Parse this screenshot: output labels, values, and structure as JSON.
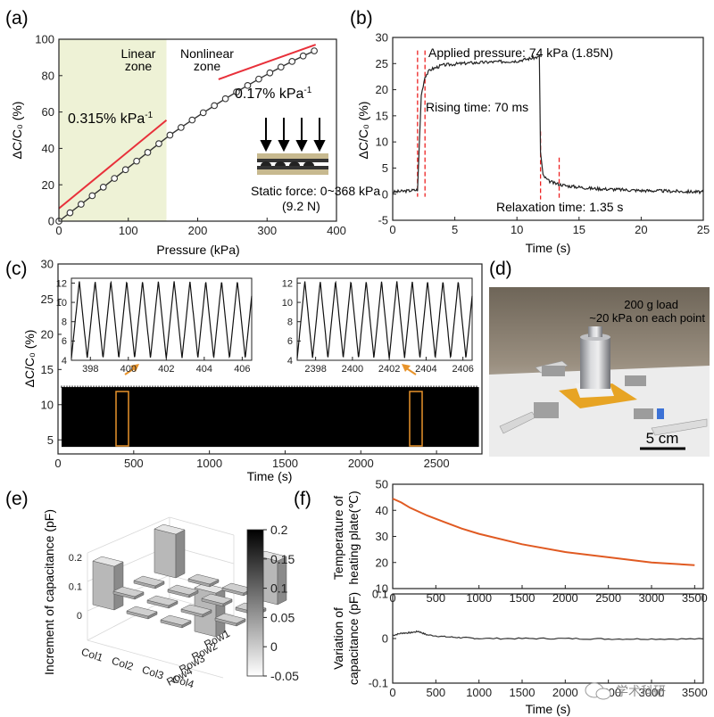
{
  "panel_labels": [
    "(a)",
    "(b)",
    "(c)",
    "(d)",
    "(e)",
    "(f)"
  ],
  "colors": {
    "fit_line": "#e8303a",
    "data_curve": "#333333",
    "linear_zone": "#eef2d6",
    "heating_curve": "#e05a22",
    "dashed": "#ee2222",
    "inset_box": "#e8932a"
  },
  "chart_data": [
    {
      "id": "a",
      "type": "line",
      "xlabel": "Pressure (kPa)",
      "ylabel": "ΔC/C₀ (%)",
      "xlim": [
        0,
        400
      ],
      "ylim": [
        0,
        100
      ],
      "xticks": [
        "0",
        "100",
        "200",
        "300",
        "400"
      ],
      "yticks": [
        "0",
        "20",
        "40",
        "60",
        "80",
        "100"
      ],
      "x": [
        0,
        16,
        32,
        48,
        64,
        80,
        96,
        112,
        128,
        144,
        160,
        176,
        192,
        208,
        224,
        240,
        256,
        272,
        288,
        304,
        320,
        336,
        352,
        368
      ],
      "y": [
        0,
        4.6,
        9.3,
        14.0,
        18.7,
        23.5,
        28.3,
        33.0,
        37.8,
        42.6,
        47.3,
        51.5,
        55.6,
        59.6,
        63.5,
        67.3,
        71.0,
        74.6,
        78.1,
        81.5,
        84.7,
        87.8,
        90.8,
        93.6
      ],
      "fit_lines": [
        {
          "label": "0.315% kPa⁻¹",
          "x": [
            0,
            155
          ],
          "y": [
            7,
            55.5
          ]
        },
        {
          "label": "0.17% kPa⁻¹",
          "x": [
            230,
            370
          ],
          "y": [
            78,
            97
          ]
        }
      ],
      "zone_boundary": 155,
      "annotations": {
        "linear_zone": [
          "Linear",
          "zone"
        ],
        "nonlinear_zone": [
          "Nonlinear",
          "zone"
        ],
        "slope1": "0.315% kPa",
        "slope1_sup": "-1",
        "slope2": "0.17% kPa",
        "slope2_sup": "-1",
        "static_force": "Static force: 0~368 kPa",
        "static_force2": "(9.2 N)"
      }
    },
    {
      "id": "b",
      "type": "line",
      "xlabel": "Time (s)",
      "ylabel": "ΔC/C₀ (%)",
      "xlim": [
        0,
        25
      ],
      "ylim": [
        -5,
        30
      ],
      "xticks": [
        "0",
        "5",
        "10",
        "15",
        "20",
        "25"
      ],
      "yticks": [
        "-5",
        "0",
        "5",
        "10",
        "15",
        "20",
        "25",
        "30"
      ],
      "x": [
        0,
        2.0,
        2.3,
        2.6,
        3.0,
        4,
        6,
        8,
        10,
        11.8,
        11.9,
        12.1,
        12.5,
        13,
        14,
        16,
        18,
        20,
        22,
        25
      ],
      "y": [
        0.4,
        0.8,
        19,
        22.5,
        23.8,
        24.7,
        25.1,
        25.3,
        25.5,
        26.3,
        8,
        3.6,
        2.6,
        2.1,
        1.6,
        1.1,
        0.9,
        0.7,
        0.6,
        0.4
      ],
      "dashed_x": [
        2.0,
        2.6,
        11.9,
        13.4
      ],
      "annotations": {
        "applied": "Applied pressure: 74 kPa (1.85N)",
        "rising": "Rising time: 70 ms",
        "relax": "Relaxation time: 1.35 s"
      }
    },
    {
      "id": "c",
      "type": "line",
      "xlabel": "Time (s)",
      "ylabel": "ΔC/C₀ (%)",
      "xlim": [
        0,
        2800
      ],
      "ylim": [
        3,
        30
      ],
      "xticks": [
        "0",
        "500",
        "1000",
        "1500",
        "2000",
        "2500"
      ],
      "yticks": [
        "5",
        "10",
        "15",
        "20",
        "25",
        "30"
      ],
      "signal_min": 4,
      "signal_max": 12.5,
      "insets": [
        {
          "xlim": [
            397,
            406.5
          ],
          "ylim": [
            4,
            12.5
          ],
          "xticks": [
            "398",
            "400",
            "402",
            "404",
            "406"
          ],
          "yticks": [
            "4",
            "6",
            "8",
            "10",
            "12"
          ],
          "period": 0.833,
          "phase": 397.0
        },
        {
          "xlim": [
            2397,
            2406.5
          ],
          "ylim": [
            4,
            12.5
          ],
          "xticks": [
            "2398",
            "2400",
            "2402",
            "2404",
            "2406"
          ],
          "yticks": [
            "4",
            "6",
            "8",
            "10",
            "12"
          ],
          "period": 0.833,
          "phase": 2397.0
        }
      ]
    },
    {
      "id": "e",
      "type": "bar3d",
      "zlabel": "Increment of capacitance (pF)",
      "cols": [
        "Col1",
        "Col2",
        "Col3",
        "Col4"
      ],
      "rows": [
        "Row1",
        "Row2",
        "Row3",
        "Row4"
      ],
      "zticks": [
        "0",
        "0.1",
        "0.2"
      ],
      "values": [
        [
          0.15,
          0.0,
          0.0,
          0.15
        ],
        [
          0.0,
          0.0,
          0.0,
          0.0
        ],
        [
          0.0,
          0.0,
          0.0,
          0.0
        ],
        [
          0.15,
          0.0,
          0.0,
          0.15
        ]
      ],
      "colorbar": {
        "ticks": [
          "0.2",
          "0.15",
          "0.1",
          "0.05",
          "0",
          "-0.05"
        ],
        "range": [
          -0.05,
          0.2
        ]
      }
    },
    {
      "id": "f1",
      "type": "line",
      "xlabel": "",
      "ylabel": [
        "Temperature of",
        "heating plate(℃)"
      ],
      "xlim": [
        0,
        3600
      ],
      "ylim": [
        10,
        50
      ],
      "xticks": [
        "0",
        "500",
        "1000",
        "1500",
        "2000",
        "2500",
        "3000",
        "3500"
      ],
      "yticks": [
        "10",
        "20",
        "30",
        "40",
        "50"
      ],
      "x": [
        0,
        100,
        200,
        400,
        600,
        800,
        1000,
        1500,
        2000,
        2500,
        3000,
        3500
      ],
      "y": [
        44.5,
        43,
        41,
        38,
        35.5,
        33,
        31,
        27,
        24,
        22,
        20,
        19
      ]
    },
    {
      "id": "f2",
      "type": "line",
      "xlabel": "Time (s)",
      "ylabel": [
        "Variation of",
        "capacitance (pF)"
      ],
      "xlim": [
        0,
        3600
      ],
      "ylim": [
        -0.1,
        0.1
      ],
      "xticks": [
        "0",
        "500",
        "1000",
        "1500",
        "2000",
        "2500",
        "3000",
        "3500"
      ],
      "yticks": [
        "-0.1",
        "0",
        "0.1"
      ],
      "x": [
        0,
        100,
        200,
        300,
        400,
        600,
        800,
        1000,
        1500,
        2000,
        2500,
        3000,
        3600
      ],
      "y": [
        0.007,
        0.012,
        0.013,
        0.016,
        0.008,
        0.004,
        0.002,
        0.0,
        0.0,
        0.0,
        -0.001,
        -0.001,
        -0.001
      ]
    }
  ],
  "photo_d": {
    "line1": "200 g load",
    "line2": "~20 kPa on each point",
    "scale": "5 cm"
  },
  "watermark": "学术科研"
}
